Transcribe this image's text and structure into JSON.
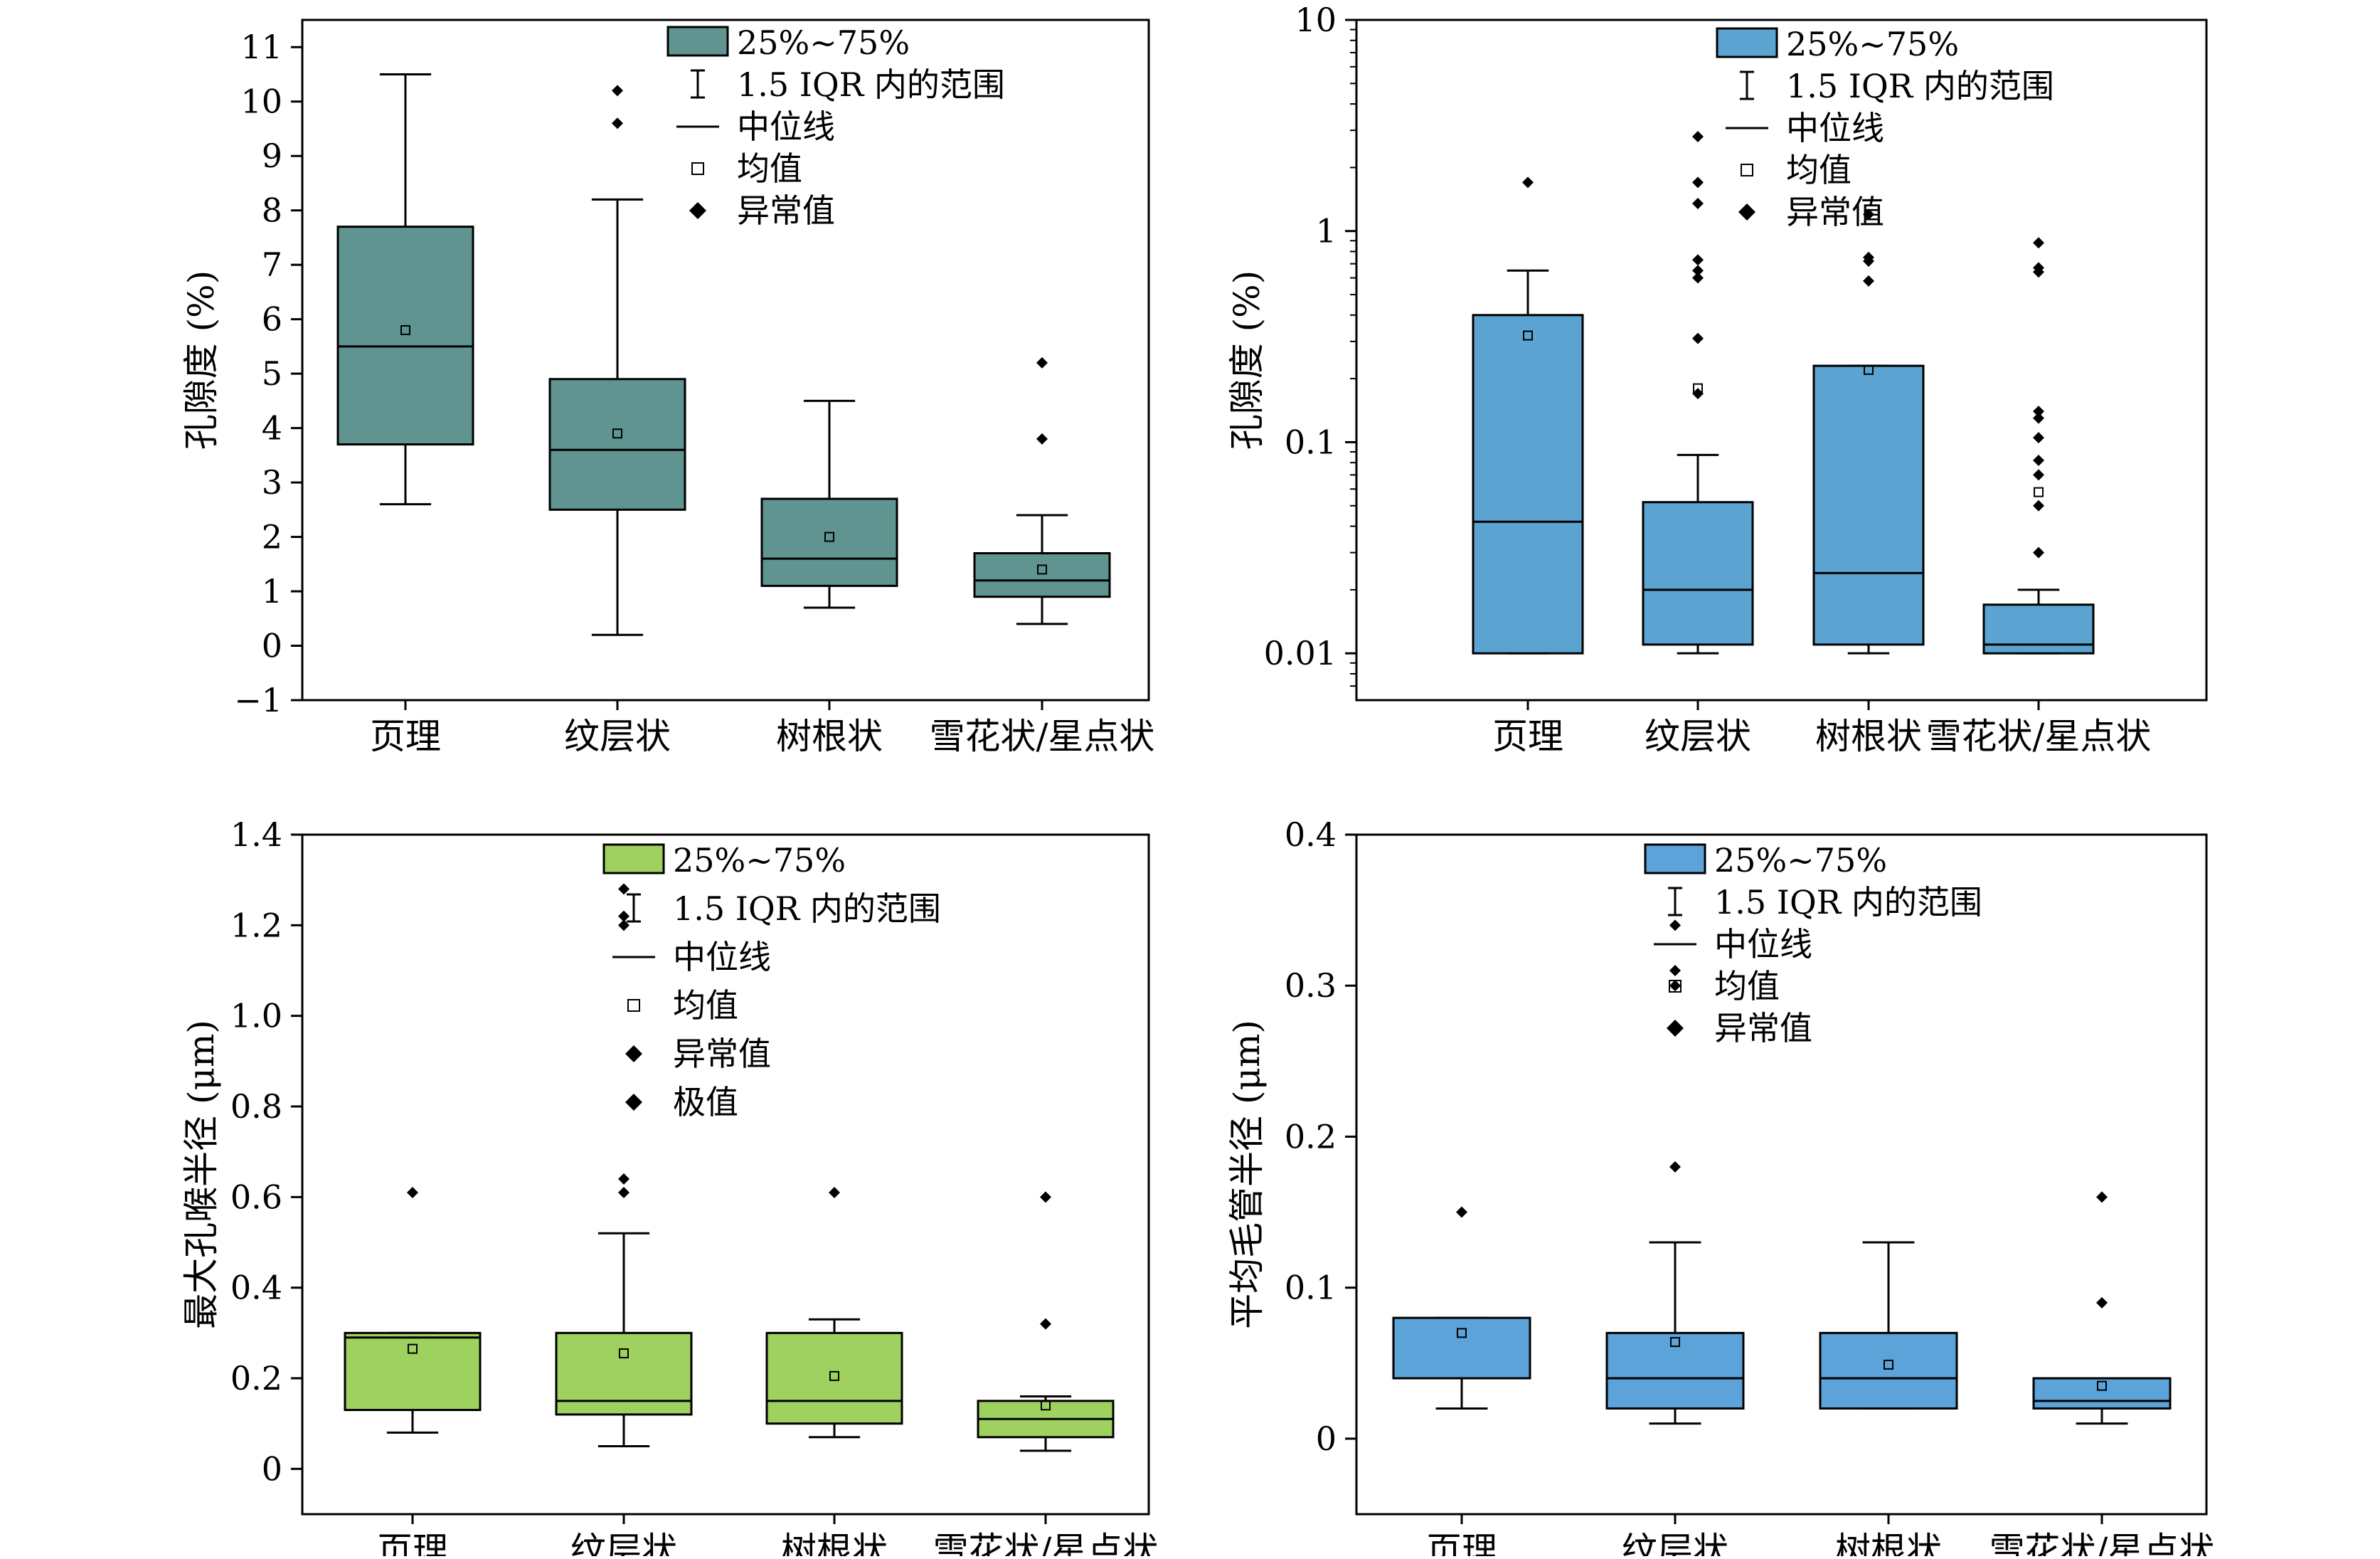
{
  "chart_data": [
    {
      "type": "box",
      "ylabel": "孔隙度 (%)",
      "categories": [
        "页理",
        "纹层状",
        "树根状",
        "雪花状/星点状"
      ],
      "yscale": "linear",
      "ylim": [
        -1,
        11.5
      ],
      "yticks": [
        -1,
        0,
        1,
        2,
        3,
        4,
        5,
        6,
        7,
        8,
        9,
        10,
        11
      ],
      "ytick_labels": [
        "−1",
        "0",
        "1",
        "2",
        "3",
        "4",
        "5",
        "6",
        "7",
        "8",
        "9",
        "10",
        "11"
      ],
      "box_color": "#5f9490",
      "legend_position": "top-right",
      "legend": [
        "25%~75%",
        "1.5 IQR 内的范围",
        "中位线",
        "均值",
        "异常值"
      ],
      "boxes": [
        {
          "category": "页理",
          "whisker_low": 2.6,
          "q1": 3.7,
          "median": 5.5,
          "q3": 7.7,
          "whisker_high": 10.5,
          "mean": 5.8,
          "outliers": []
        },
        {
          "category": "纹层状",
          "whisker_low": 0.2,
          "q1": 2.5,
          "median": 3.6,
          "q3": 4.9,
          "whisker_high": 8.2,
          "mean": 3.9,
          "outliers": [
            9.6,
            10.2
          ]
        },
        {
          "category": "树根状",
          "whisker_low": 0.7,
          "q1": 1.1,
          "median": 1.6,
          "q3": 2.7,
          "whisker_high": 4.5,
          "mean": 2.0,
          "outliers": []
        },
        {
          "category": "雪花状/星点状",
          "whisker_low": 0.4,
          "q1": 0.9,
          "median": 1.2,
          "q3": 1.7,
          "whisker_high": 2.4,
          "mean": 1.4,
          "outliers": [
            3.8,
            5.2
          ]
        }
      ]
    },
    {
      "type": "box",
      "ylabel": "孔隙度 (%)",
      "categories": [
        "页理",
        "纹层状",
        "树根状",
        "雪花状/星点状"
      ],
      "yscale": "log",
      "ylim": [
        0.006,
        10
      ],
      "yticks": [
        0.01,
        0.1,
        1,
        10
      ],
      "ytick_labels": [
        "0.01",
        "0.1",
        "1",
        "10"
      ],
      "box_color": "#5ba3d0",
      "legend_position": "top-right",
      "legend": [
        "25%~75%",
        "1.5 IQR 内的范围",
        "中位线",
        "均值",
        "异常值"
      ],
      "boxes": [
        {
          "category": "页理",
          "whisker_low": 0.01,
          "q1": 0.01,
          "median": 0.042,
          "q3": 0.4,
          "whisker_high": 0.65,
          "mean": 0.32,
          "outliers": [
            1.7
          ]
        },
        {
          "category": "纹层状",
          "whisker_low": 0.01,
          "q1": 0.011,
          "median": 0.02,
          "q3": 0.052,
          "whisker_high": 0.087,
          "mean": 0.18,
          "outliers": [
            0.17,
            0.31,
            0.6,
            0.65,
            0.73,
            1.35,
            1.7,
            2.8
          ]
        },
        {
          "category": "树根状",
          "whisker_low": 0.01,
          "q1": 0.011,
          "median": 0.024,
          "q3": 0.23,
          "whisker_high": 0.23,
          "mean": 0.22,
          "outliers": [
            0.58,
            0.72,
            0.75,
            1.2
          ]
        },
        {
          "category": "雪花状/星点状",
          "whisker_low": 0.01,
          "q1": 0.01,
          "median": 0.011,
          "q3": 0.017,
          "whisker_high": 0.02,
          "mean": 0.058,
          "outliers": [
            0.03,
            0.05,
            0.07,
            0.082,
            0.105,
            0.13,
            0.14,
            0.64,
            0.67,
            0.88
          ]
        }
      ]
    },
    {
      "type": "box",
      "ylabel": "最大孔喉半径 (μm)",
      "categories": [
        "页理",
        "纹层状",
        "树根状",
        "雪花状/星点状"
      ],
      "yscale": "linear",
      "ylim": [
        -0.1,
        1.4
      ],
      "yticks": [
        0,
        0.2,
        0.4,
        0.6,
        0.8,
        1.0,
        1.2,
        1.4
      ],
      "ytick_labels": [
        "0",
        "0.2",
        "0.4",
        "0.6",
        "0.8",
        "1.0",
        "1.2",
        "1.4"
      ],
      "box_color": "#9fd160",
      "legend_position": "top-right",
      "legend": [
        "25%~75%",
        "1.5 IQR 内的范围",
        "中位线",
        "均值",
        "异常值",
        "极值"
      ],
      "boxes": [
        {
          "category": "页理",
          "whisker_low": 0.08,
          "q1": 0.13,
          "median": 0.29,
          "q3": 0.3,
          "whisker_high": 0.3,
          "mean": 0.265,
          "outliers": [
            0.61
          ]
        },
        {
          "category": "纹层状",
          "whisker_low": 0.05,
          "q1": 0.12,
          "median": 0.15,
          "q3": 0.3,
          "whisker_high": 0.52,
          "mean": 0.255,
          "outliers": [
            0.61,
            0.64,
            1.2,
            1.22,
            1.28
          ]
        },
        {
          "category": "树根状",
          "whisker_low": 0.07,
          "q1": 0.1,
          "median": 0.15,
          "q3": 0.3,
          "whisker_high": 0.33,
          "mean": 0.205,
          "outliers": [
            0.61
          ]
        },
        {
          "category": "雪花状/星点状",
          "whisker_low": 0.04,
          "q1": 0.07,
          "median": 0.11,
          "q3": 0.15,
          "whisker_high": 0.16,
          "mean": 0.14,
          "outliers": [
            0.32,
            0.6
          ]
        }
      ]
    },
    {
      "type": "box",
      "ylabel": "平均毛管半径 (μm)",
      "categories": [
        "页理",
        "纹层状",
        "树根状",
        "雪花状/星点状"
      ],
      "yscale": "linear",
      "ylim": [
        -0.05,
        0.4
      ],
      "yticks": [
        0,
        0.1,
        0.2,
        0.3,
        0.4
      ],
      "ytick_labels": [
        "0",
        "0.1",
        "0.2",
        "0.3",
        "0.4"
      ],
      "box_color": "#5ba3d9",
      "legend_position": "top-right",
      "legend": [
        "25%~75%",
        "1.5 IQR 内的范围",
        "中位线",
        "均值",
        "异常值"
      ],
      "boxes": [
        {
          "category": "页理",
          "whisker_low": 0.02,
          "q1": 0.04,
          "median": 0.04,
          "q3": 0.08,
          "whisker_high": 0.08,
          "mean": 0.07,
          "outliers": [
            0.15
          ]
        },
        {
          "category": "纹层状",
          "whisker_low": 0.01,
          "q1": 0.02,
          "median": 0.04,
          "q3": 0.07,
          "whisker_high": 0.13,
          "mean": 0.064,
          "outliers": [
            0.18,
            0.3,
            0.31,
            0.34
          ]
        },
        {
          "category": "树根状",
          "whisker_low": 0.02,
          "q1": 0.02,
          "median": 0.04,
          "q3": 0.07,
          "whisker_high": 0.13,
          "mean": 0.049,
          "outliers": []
        },
        {
          "category": "雪花状/星点状",
          "whisker_low": 0.01,
          "q1": 0.02,
          "median": 0.025,
          "q3": 0.04,
          "whisker_high": 0.04,
          "mean": 0.035,
          "outliers": [
            0.09,
            0.16
          ]
        }
      ]
    }
  ]
}
